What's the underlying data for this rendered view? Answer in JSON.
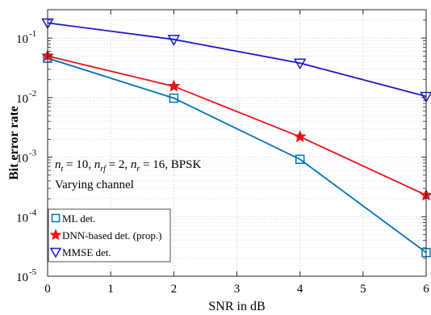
{
  "chart_data": {
    "type": "line",
    "xlabel": "SNR in dB",
    "ylabel": "Bit error rate",
    "x_ticks": [
      0,
      1,
      2,
      3,
      4,
      5,
      6
    ],
    "xlim": [
      0,
      6
    ],
    "ylim": [
      1e-05,
      0.3
    ],
    "y_scale": "log",
    "y_ticks": [
      {
        "value": 1e-05,
        "exp": "-5"
      },
      {
        "value": 0.0001,
        "exp": "-4"
      },
      {
        "value": 0.001,
        "exp": "-3"
      },
      {
        "value": 0.01,
        "exp": "-2"
      },
      {
        "value": 0.1,
        "exp": "-1"
      }
    ],
    "y_tick_base": "10",
    "grid": true,
    "legend_position": "bottom-left",
    "annotations": {
      "line1": "n_t = 10, n_rf = 2, n_r = 16, BPSK",
      "line2": "Varying channel"
    },
    "series": [
      {
        "name": "ML det.",
        "marker": "square",
        "color": "#0072BD",
        "x": [
          0,
          2,
          4,
          6
        ],
        "y": [
          0.046,
          0.0098,
          0.00092,
          2.5e-05
        ]
      },
      {
        "name": "DNN-based det. (prop.)",
        "marker": "star",
        "color": "#E8141B",
        "x": [
          0,
          2,
          4,
          6
        ],
        "y": [
          0.05,
          0.0155,
          0.0022,
          0.00023
        ]
      },
      {
        "name": "MMSE det.",
        "marker": "triangle-down",
        "color": "#1A1AC8",
        "x": [
          0,
          2,
          4,
          6
        ],
        "y": [
          0.18,
          0.095,
          0.038,
          0.0105
        ]
      }
    ]
  }
}
